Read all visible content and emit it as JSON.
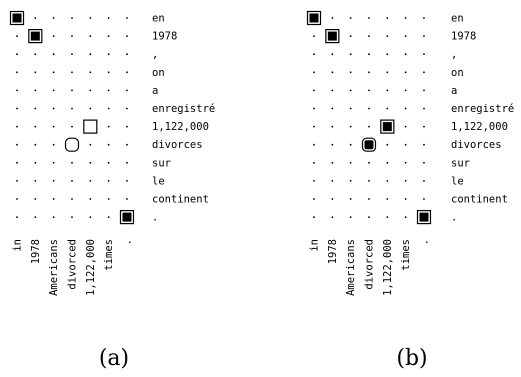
{
  "panels": [
    {
      "caption": "(a)",
      "source_words": [
        "in",
        "1978",
        "Americans",
        "divorced",
        "1,122,000",
        "times",
        "."
      ],
      "target_words": [
        "en",
        "1978",
        ",",
        "on",
        "a",
        "enregistré",
        "1,122,000",
        "divorces",
        "sur",
        "le",
        "continent",
        "."
      ],
      "alignments": [
        {
          "source": 0,
          "target": 0,
          "style": "filled"
        },
        {
          "source": 1,
          "target": 1,
          "style": "filled"
        },
        {
          "source": 4,
          "target": 6,
          "style": "open-square"
        },
        {
          "source": 3,
          "target": 7,
          "style": "open-rounded"
        },
        {
          "source": 6,
          "target": 11,
          "style": "filled"
        }
      ]
    },
    {
      "caption": "(b)",
      "source_words": [
        "in",
        "1978",
        "Americans",
        "divorced",
        "1,122,000",
        "times",
        "."
      ],
      "target_words": [
        "en",
        "1978",
        ",",
        "on",
        "a",
        "enregistré",
        "1,122,000",
        "divorces",
        "sur",
        "le",
        "continent",
        "."
      ],
      "alignments": [
        {
          "source": 0,
          "target": 0,
          "style": "filled"
        },
        {
          "source": 1,
          "target": 1,
          "style": "filled"
        },
        {
          "source": 4,
          "target": 6,
          "style": "filled"
        },
        {
          "source": 3,
          "target": 7,
          "style": "filled-rounded"
        },
        {
          "source": 6,
          "target": 11,
          "style": "filled"
        }
      ]
    }
  ],
  "colors": {
    "ink": "#000000",
    "background": "#ffffff"
  }
}
